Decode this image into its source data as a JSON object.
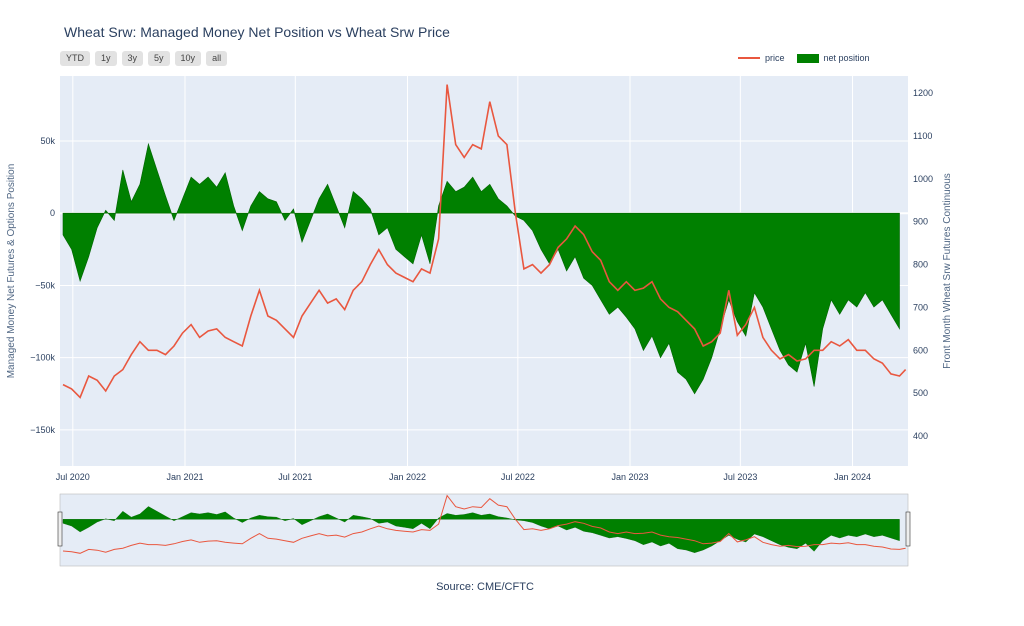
{
  "title": "Wheat Srw: Managed Money Net Position vs Wheat Srw Price",
  "range_buttons": [
    "YTD",
    "1y",
    "3y",
    "5y",
    "10y",
    "all"
  ],
  "legend": {
    "price": "price",
    "net": "net position"
  },
  "source": "Source: CME/CFTC",
  "colors": {
    "price": "#E9573F",
    "net": "#008000",
    "plot_bg": "#E5ECF6"
  },
  "chart_data": {
    "type": "area",
    "title": "Wheat Srw: Managed Money Net Position vs Wheat Srw Price",
    "x_axis": {
      "type": "date",
      "ticks": [
        "Jul 2020",
        "Jan 2021",
        "Jul 2021",
        "Jan 2022",
        "Jul 2022",
        "Jan 2023",
        "Jul 2023",
        "Jan 2024"
      ],
      "range": [
        "2020-06-10",
        "2024-04-01"
      ]
    },
    "y_left": {
      "label": "Managed Money Net Futures & Options Position",
      "ticks": [
        "50k",
        "0",
        "−50k",
        "−100k",
        "−150k"
      ],
      "tick_values": [
        50000,
        0,
        -50000,
        -100000,
        -150000
      ],
      "range": [
        -175000,
        95000
      ]
    },
    "y_right": {
      "label": "Front Month Wheat Srw Futures Continuous",
      "ticks": [
        "1200",
        "1100",
        "1000",
        "900",
        "800",
        "700",
        "600",
        "500",
        "400"
      ],
      "tick_values": [
        1200,
        1100,
        1000,
        900,
        800,
        700,
        600,
        500,
        400
      ],
      "range": [
        330,
        1240
      ]
    },
    "grid": true,
    "legend_position": "top-right",
    "series": [
      {
        "name": "net position",
        "kind": "area",
        "axis": "left",
        "points": [
          [
            "2020-06-15",
            -15000
          ],
          [
            "2020-06-29",
            -25000
          ],
          [
            "2020-07-13",
            -47000
          ],
          [
            "2020-07-27",
            -30000
          ],
          [
            "2020-08-10",
            -10000
          ],
          [
            "2020-08-24",
            2000
          ],
          [
            "2020-09-07",
            -5000
          ],
          [
            "2020-09-21",
            30000
          ],
          [
            "2020-10-05",
            8000
          ],
          [
            "2020-10-19",
            20000
          ],
          [
            "2020-11-02",
            48000
          ],
          [
            "2020-11-16",
            30000
          ],
          [
            "2020-11-30",
            12000
          ],
          [
            "2020-12-14",
            -5000
          ],
          [
            "2020-12-28",
            10000
          ],
          [
            "2021-01-11",
            25000
          ],
          [
            "2021-01-25",
            20000
          ],
          [
            "2021-02-08",
            25000
          ],
          [
            "2021-02-22",
            18000
          ],
          [
            "2021-03-08",
            28000
          ],
          [
            "2021-03-22",
            5000
          ],
          [
            "2021-04-05",
            -12000
          ],
          [
            "2021-04-19",
            5000
          ],
          [
            "2021-05-03",
            15000
          ],
          [
            "2021-05-17",
            10000
          ],
          [
            "2021-05-31",
            8000
          ],
          [
            "2021-06-14",
            -5000
          ],
          [
            "2021-06-28",
            3000
          ],
          [
            "2021-07-12",
            -20000
          ],
          [
            "2021-07-26",
            -5000
          ],
          [
            "2021-08-09",
            10000
          ],
          [
            "2021-08-23",
            20000
          ],
          [
            "2021-09-06",
            5000
          ],
          [
            "2021-09-20",
            -10000
          ],
          [
            "2021-10-04",
            15000
          ],
          [
            "2021-10-18",
            10000
          ],
          [
            "2021-11-01",
            3000
          ],
          [
            "2021-11-15",
            -15000
          ],
          [
            "2021-11-29",
            -10000
          ],
          [
            "2021-12-13",
            -25000
          ],
          [
            "2021-12-27",
            -30000
          ],
          [
            "2022-01-10",
            -35000
          ],
          [
            "2022-01-24",
            -15000
          ],
          [
            "2022-02-07",
            -35000
          ],
          [
            "2022-02-21",
            5000
          ],
          [
            "2022-03-07",
            22000
          ],
          [
            "2022-03-21",
            15000
          ],
          [
            "2022-04-04",
            18000
          ],
          [
            "2022-04-18",
            25000
          ],
          [
            "2022-05-02",
            15000
          ],
          [
            "2022-05-16",
            20000
          ],
          [
            "2022-05-30",
            10000
          ],
          [
            "2022-06-13",
            5000
          ],
          [
            "2022-06-27",
            -2000
          ],
          [
            "2022-07-11",
            -5000
          ],
          [
            "2022-07-25",
            -12000
          ],
          [
            "2022-08-08",
            -25000
          ],
          [
            "2022-08-22",
            -35000
          ],
          [
            "2022-09-05",
            -25000
          ],
          [
            "2022-09-19",
            -40000
          ],
          [
            "2022-10-03",
            -30000
          ],
          [
            "2022-10-17",
            -45000
          ],
          [
            "2022-10-31",
            -50000
          ],
          [
            "2022-11-14",
            -60000
          ],
          [
            "2022-11-28",
            -70000
          ],
          [
            "2022-12-12",
            -65000
          ],
          [
            "2022-12-26",
            -72000
          ],
          [
            "2023-01-09",
            -80000
          ],
          [
            "2023-01-23",
            -95000
          ],
          [
            "2023-02-06",
            -85000
          ],
          [
            "2023-02-20",
            -100000
          ],
          [
            "2023-03-06",
            -90000
          ],
          [
            "2023-03-20",
            -110000
          ],
          [
            "2023-04-03",
            -115000
          ],
          [
            "2023-04-17",
            -125000
          ],
          [
            "2023-05-01",
            -115000
          ],
          [
            "2023-05-15",
            -100000
          ],
          [
            "2023-05-29",
            -80000
          ],
          [
            "2023-06-12",
            -60000
          ],
          [
            "2023-06-26",
            -75000
          ],
          [
            "2023-07-10",
            -85000
          ],
          [
            "2023-07-24",
            -55000
          ],
          [
            "2023-08-07",
            -65000
          ],
          [
            "2023-08-21",
            -80000
          ],
          [
            "2023-09-04",
            -95000
          ],
          [
            "2023-09-18",
            -105000
          ],
          [
            "2023-10-02",
            -110000
          ],
          [
            "2023-10-16",
            -90000
          ],
          [
            "2023-10-30",
            -120000
          ],
          [
            "2023-11-13",
            -80000
          ],
          [
            "2023-11-27",
            -60000
          ],
          [
            "2023-12-11",
            -70000
          ],
          [
            "2023-12-25",
            -60000
          ],
          [
            "2024-01-08",
            -65000
          ],
          [
            "2024-01-22",
            -55000
          ],
          [
            "2024-02-05",
            -65000
          ],
          [
            "2024-02-19",
            -60000
          ],
          [
            "2024-03-04",
            -70000
          ],
          [
            "2024-03-18",
            -80000
          ]
        ]
      },
      {
        "name": "price",
        "kind": "line",
        "axis": "right",
        "points": [
          [
            "2020-06-15",
            520
          ],
          [
            "2020-06-29",
            510
          ],
          [
            "2020-07-13",
            490
          ],
          [
            "2020-07-27",
            540
          ],
          [
            "2020-08-10",
            530
          ],
          [
            "2020-08-24",
            505
          ],
          [
            "2020-09-07",
            540
          ],
          [
            "2020-09-21",
            555
          ],
          [
            "2020-10-05",
            590
          ],
          [
            "2020-10-19",
            620
          ],
          [
            "2020-11-02",
            600
          ],
          [
            "2020-11-16",
            600
          ],
          [
            "2020-11-30",
            590
          ],
          [
            "2020-12-14",
            610
          ],
          [
            "2020-12-28",
            640
          ],
          [
            "2021-01-11",
            660
          ],
          [
            "2021-01-25",
            630
          ],
          [
            "2021-02-08",
            645
          ],
          [
            "2021-02-22",
            650
          ],
          [
            "2021-03-08",
            630
          ],
          [
            "2021-03-22",
            620
          ],
          [
            "2021-04-05",
            610
          ],
          [
            "2021-04-19",
            680
          ],
          [
            "2021-05-03",
            740
          ],
          [
            "2021-05-17",
            680
          ],
          [
            "2021-05-31",
            670
          ],
          [
            "2021-06-14",
            650
          ],
          [
            "2021-06-28",
            630
          ],
          [
            "2021-07-12",
            680
          ],
          [
            "2021-07-26",
            710
          ],
          [
            "2021-08-09",
            740
          ],
          [
            "2021-08-23",
            710
          ],
          [
            "2021-09-06",
            720
          ],
          [
            "2021-09-20",
            695
          ],
          [
            "2021-10-04",
            740
          ],
          [
            "2021-10-18",
            760
          ],
          [
            "2021-11-01",
            800
          ],
          [
            "2021-11-15",
            835
          ],
          [
            "2021-11-29",
            800
          ],
          [
            "2021-12-13",
            780
          ],
          [
            "2021-12-27",
            770
          ],
          [
            "2022-01-10",
            760
          ],
          [
            "2022-01-24",
            790
          ],
          [
            "2022-02-07",
            780
          ],
          [
            "2022-02-21",
            860
          ],
          [
            "2022-03-07",
            1220
          ],
          [
            "2022-03-21",
            1080
          ],
          [
            "2022-04-04",
            1050
          ],
          [
            "2022-04-18",
            1080
          ],
          [
            "2022-05-02",
            1070
          ],
          [
            "2022-05-16",
            1180
          ],
          [
            "2022-05-30",
            1100
          ],
          [
            "2022-06-13",
            1080
          ],
          [
            "2022-06-27",
            920
          ],
          [
            "2022-07-11",
            790
          ],
          [
            "2022-07-25",
            800
          ],
          [
            "2022-08-08",
            780
          ],
          [
            "2022-08-22",
            800
          ],
          [
            "2022-09-05",
            840
          ],
          [
            "2022-09-19",
            860
          ],
          [
            "2022-10-03",
            890
          ],
          [
            "2022-10-17",
            870
          ],
          [
            "2022-10-31",
            830
          ],
          [
            "2022-11-14",
            810
          ],
          [
            "2022-11-28",
            760
          ],
          [
            "2022-12-12",
            740
          ],
          [
            "2022-12-26",
            760
          ],
          [
            "2023-01-09",
            740
          ],
          [
            "2023-01-23",
            745
          ],
          [
            "2023-02-06",
            760
          ],
          [
            "2023-02-20",
            720
          ],
          [
            "2023-03-06",
            700
          ],
          [
            "2023-03-20",
            690
          ],
          [
            "2023-04-03",
            670
          ],
          [
            "2023-04-17",
            650
          ],
          [
            "2023-05-01",
            610
          ],
          [
            "2023-05-15",
            620
          ],
          [
            "2023-05-29",
            640
          ],
          [
            "2023-06-12",
            740
          ],
          [
            "2023-06-26",
            635
          ],
          [
            "2023-07-10",
            660
          ],
          [
            "2023-07-24",
            700
          ],
          [
            "2023-08-07",
            630
          ],
          [
            "2023-08-21",
            600
          ],
          [
            "2023-09-04",
            580
          ],
          [
            "2023-09-18",
            590
          ],
          [
            "2023-10-02",
            575
          ],
          [
            "2023-10-16",
            580
          ],
          [
            "2023-10-30",
            600
          ],
          [
            "2023-11-13",
            600
          ],
          [
            "2023-11-27",
            620
          ],
          [
            "2023-12-11",
            610
          ],
          [
            "2023-12-25",
            625
          ],
          [
            "2024-01-08",
            600
          ],
          [
            "2024-01-22",
            600
          ],
          [
            "2024-02-05",
            580
          ],
          [
            "2024-02-19",
            570
          ],
          [
            "2024-03-04",
            545
          ],
          [
            "2024-03-18",
            540
          ],
          [
            "2024-03-28",
            555
          ]
        ]
      }
    ],
    "range_slider": {
      "selected_range": [
        "2020-06-10",
        "2024-04-01"
      ]
    }
  }
}
